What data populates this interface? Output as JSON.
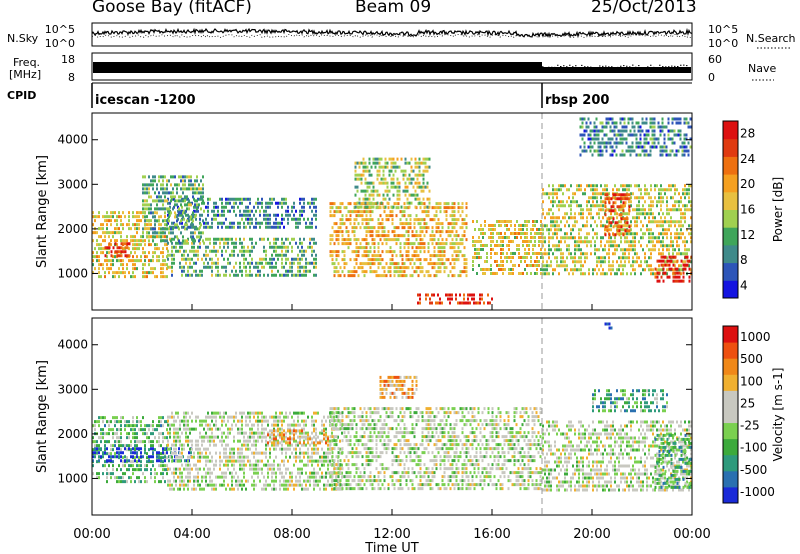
{
  "header": {
    "station": "Goose Bay (fitACF)",
    "beam": "Beam 09",
    "date": "25/Oct/2013"
  },
  "top_panels": {
    "nsky_label": "N.Sky",
    "nsearch_label": "N.Search",
    "freq_label_1": "Freq.",
    "freq_label_2": "[MHz]",
    "nave_label": "Nave",
    "cpid_label": "CPID",
    "nsky_ticks": [
      "10^5",
      "10^0"
    ],
    "nsearch_ticks": [
      "10^5",
      "10^0"
    ],
    "freq_ticks": [
      "18",
      "8"
    ],
    "nave_ticks": [
      "60",
      "0"
    ],
    "cpid_segments": [
      {
        "label": "icescan -1200",
        "start_hour": 0,
        "end_hour": 18
      },
      {
        "label": "rbsp 200",
        "start_hour": 18,
        "end_hour": 24
      }
    ]
  },
  "x_axis": {
    "title": "Time UT",
    "ticks": [
      "00:00",
      "04:00",
      "08:00",
      "12:00",
      "16:00",
      "20:00",
      "00:00"
    ]
  },
  "chart_data": [
    {
      "type": "heatmap",
      "quantity": "Power",
      "ylabel": "Slant Range [km]",
      "ylim": [
        180,
        4600
      ],
      "yticks": [
        1000,
        2000,
        3000,
        4000
      ],
      "xlim_hours": [
        0,
        24
      ],
      "colorbar": {
        "title": "Power [dB]",
        "ticks": [
          "28",
          "24",
          "20",
          "16",
          "12",
          "8",
          "4"
        ],
        "colors": [
          "#1414e0",
          "#2d55b8",
          "#3f8a8a",
          "#3fa55a",
          "#a0d050",
          "#e8c040",
          "#f5a020",
          "#ee7010",
          "#e03a10",
          "#dd1010"
        ]
      },
      "echo_regions": [
        {
          "t0": 0.0,
          "t1": 3.0,
          "r0": 850,
          "r1": 2400,
          "level": 0.55
        },
        {
          "t0": 0.5,
          "t1": 1.5,
          "r0": 1300,
          "r1": 1700,
          "level": 0.85
        },
        {
          "t0": 3.0,
          "t1": 9.0,
          "r0": 900,
          "r1": 1800,
          "level": 0.35
        },
        {
          "t0": 3.0,
          "t1": 9.0,
          "r0": 2000,
          "r1": 2700,
          "level": 0.25
        },
        {
          "t0": 2.0,
          "t1": 4.5,
          "r0": 1700,
          "r1": 3200,
          "level": 0.35
        },
        {
          "t0": 9.5,
          "t1": 15.0,
          "r0": 850,
          "r1": 2600,
          "level": 0.6
        },
        {
          "t0": 10.5,
          "t1": 13.5,
          "r0": 2400,
          "r1": 3600,
          "level": 0.45
        },
        {
          "t0": 15.2,
          "t1": 18.0,
          "r0": 900,
          "r1": 2200,
          "level": 0.55
        },
        {
          "t0": 18.0,
          "t1": 24.0,
          "r0": 900,
          "r1": 3000,
          "level": 0.5
        },
        {
          "t0": 20.5,
          "t1": 21.5,
          "r0": 1800,
          "r1": 2800,
          "level": 0.85
        },
        {
          "t0": 22.5,
          "t1": 24.0,
          "r0": 800,
          "r1": 1400,
          "level": 0.95
        },
        {
          "t0": 19.5,
          "t1": 24.0,
          "r0": 3600,
          "r1": 4500,
          "level": 0.25
        },
        {
          "t0": 13.0,
          "t1": 16.0,
          "r0": 300,
          "r1": 550,
          "level": 0.9
        }
      ]
    },
    {
      "type": "heatmap",
      "quantity": "Velocity",
      "ylabel": "Slant Range [km]",
      "ylim": [
        180,
        4600
      ],
      "yticks": [
        1000,
        2000,
        3000,
        4000
      ],
      "xlim_hours": [
        0,
        24
      ],
      "colorbar": {
        "title": "Velocity [m s-1]",
        "ticks": [
          "1000",
          "500",
          "100",
          "25",
          "-25",
          "-100",
          "-500",
          "-1000"
        ],
        "colors": [
          "#1a2ad8",
          "#2a70b0",
          "#2e9a7c",
          "#3caa3c",
          "#7ad050",
          "#c8c8c0",
          "#c8c8c0",
          "#f0b030",
          "#f08818",
          "#ee5010",
          "#dd1010"
        ]
      },
      "echo_regions": [
        {
          "t0": 0.0,
          "t1": 3.0,
          "r0": 900,
          "r1": 2400,
          "level": 0.35
        },
        {
          "t0": 0.0,
          "t1": 4.0,
          "r0": 1300,
          "r1": 1700,
          "level": 0.1
        },
        {
          "t0": 3.0,
          "t1": 10.0,
          "r0": 700,
          "r1": 2500,
          "level": 0.5
        },
        {
          "t0": 7.0,
          "t1": 9.5,
          "r0": 1700,
          "r1": 2100,
          "level": 0.7
        },
        {
          "t0": 9.5,
          "t1": 18.0,
          "r0": 700,
          "r1": 2600,
          "level": 0.5
        },
        {
          "t0": 11.5,
          "t1": 13.0,
          "r0": 2800,
          "r1": 3300,
          "level": 0.7
        },
        {
          "t0": 18.0,
          "t1": 24.0,
          "r0": 700,
          "r1": 2300,
          "level": 0.5
        },
        {
          "t0": 20.0,
          "t1": 23.0,
          "r0": 2500,
          "r1": 3000,
          "level": 0.3
        },
        {
          "t0": 22.5,
          "t1": 24.0,
          "r0": 700,
          "r1": 2000,
          "level": 0.3
        },
        {
          "t0": 20.5,
          "t1": 21.0,
          "r0": 4300,
          "r1": 4500,
          "level": 0.05
        }
      ]
    }
  ]
}
